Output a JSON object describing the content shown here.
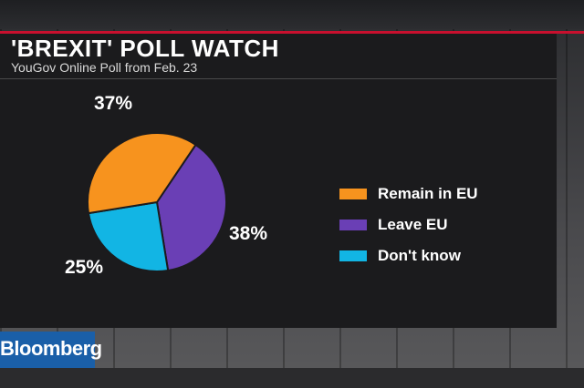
{
  "header": {
    "title": "'BREXIT' POLL WATCH",
    "subtitle": "YouGov Online Poll from Feb. 23"
  },
  "branding": {
    "logo_text": "Bloomberg"
  },
  "colors": {
    "remain": "#f7931e",
    "leave": "#6a3fb5",
    "dont_know": "#12b5e4",
    "accent": "#c8102e"
  },
  "chart_data": {
    "type": "pie",
    "title": "'BREXIT' POLL WATCH",
    "subtitle": "YouGov Online Poll from Feb. 23",
    "legend_position": "right",
    "slices": [
      {
        "label": "Remain in EU",
        "value": 37,
        "display": "37%",
        "color": "#f7931e"
      },
      {
        "label": "Leave EU",
        "value": 38,
        "display": "38%",
        "color": "#6a3fb5"
      },
      {
        "label": "Don't know",
        "value": 25,
        "display": "25%",
        "color": "#12b5e4"
      }
    ]
  }
}
